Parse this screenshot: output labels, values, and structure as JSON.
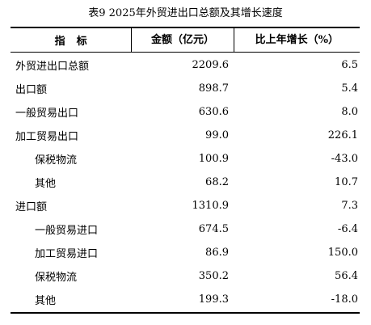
{
  "title": "表9  2025年外贸进出口总额及其增长速度",
  "header": {
    "col_indicator": "指标",
    "col_amount": "金额（亿元）",
    "col_growth": "比上年增长（%）"
  },
  "rows": [
    {
      "name": "外贸进出口总额",
      "amount": "2209.6",
      "growth": "6.5",
      "indent": false
    },
    {
      "name": "出口额",
      "amount": "898.7",
      "growth": "5.4",
      "indent": false
    },
    {
      "name": "一般贸易出口",
      "amount": "630.6",
      "growth": "8.0",
      "indent": false
    },
    {
      "name": "加工贸易出口",
      "amount": "99.0",
      "growth": "226.1",
      "indent": false
    },
    {
      "name": "保税物流",
      "amount": "100.9",
      "growth": "-43.0",
      "indent": true
    },
    {
      "name": "其他",
      "amount": "68.2",
      "growth": "10.7",
      "indent": true
    },
    {
      "name": "进口额",
      "amount": "1310.9",
      "growth": "7.3",
      "indent": false
    },
    {
      "name": "一般贸易进口",
      "amount": "674.5",
      "growth": "-6.4",
      "indent": true
    },
    {
      "name": "加工贸易进口",
      "amount": "86.9",
      "growth": "150.0",
      "indent": true
    },
    {
      "name": "保税物流",
      "amount": "350.2",
      "growth": "56.4",
      "indent": true
    },
    {
      "name": "其他",
      "amount": "199.3",
      "growth": "-18.0",
      "indent": true
    }
  ]
}
